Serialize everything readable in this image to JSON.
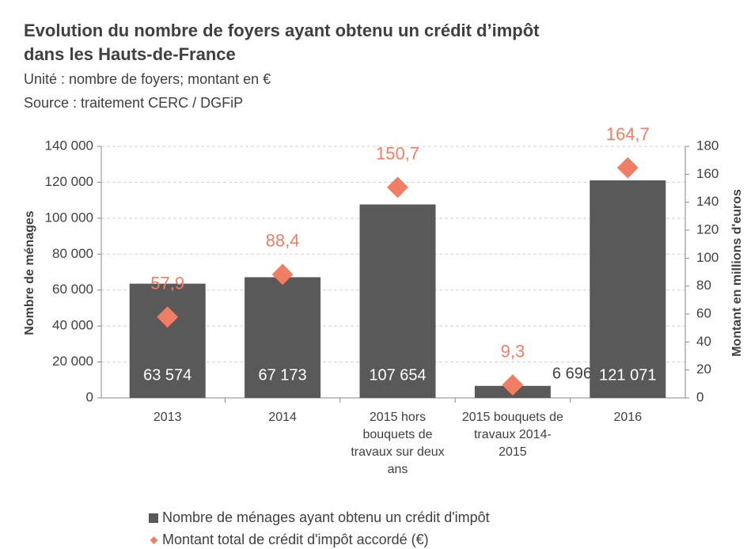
{
  "chart_data": {
    "type": "bar",
    "title": "Evolution du nombre de foyers ayant obtenu un crédit d’impôt dans les Hauts-de-France",
    "subtitle": [
      "Unité : nombre de foyers; montant en €",
      "Source : traitement CERC / DGFiP"
    ],
    "ylabel": "Nombre de ménages",
    "y2label": "Montant en millions d'euros",
    "categories": [
      "2013",
      "2014",
      "2015 hors bouquets de travaux sur deux ans",
      "2015 bouquets de travaux 2014-2015",
      "2016"
    ],
    "series": [
      {
        "name": "Nombre de ménages ayant obtenu un crédit d'impôt",
        "type": "bar",
        "color": "#595959",
        "values": [
          63574,
          67173,
          107654,
          6696,
          121071
        ],
        "value_labels": [
          "63 574",
          "67 173",
          "107 654",
          "6 696",
          "121 071"
        ]
      },
      {
        "name": "Montant total de crédit d'impôt accordé (€)",
        "type": "scatter",
        "axis": "y2",
        "color": "#f07e65",
        "values": [
          57.9,
          88.4,
          150.7,
          9.3,
          164.7
        ],
        "value_labels": [
          "57,9",
          "88,4",
          "150,7",
          "9,3",
          "164,7"
        ]
      }
    ],
    "ylim": [
      0,
      140000
    ],
    "yticks": [
      0,
      {
        "value": 20000,
        "label": "20 000"
      },
      {
        "value": 40000,
        "label": "40 000"
      },
      {
        "value": 60000,
        "label": "60 000"
      },
      {
        "value": 80000,
        "label": "80 000"
      },
      {
        "value": 100000,
        "label": "100 000"
      },
      {
        "value": 120000,
        "label": "120 000"
      },
      {
        "value": 140000,
        "label": "140 000"
      }
    ],
    "y2lim": [
      0,
      180
    ],
    "y2ticks": [
      0,
      20,
      40,
      60,
      80,
      100,
      120,
      140,
      160,
      180
    ],
    "grid": true
  }
}
